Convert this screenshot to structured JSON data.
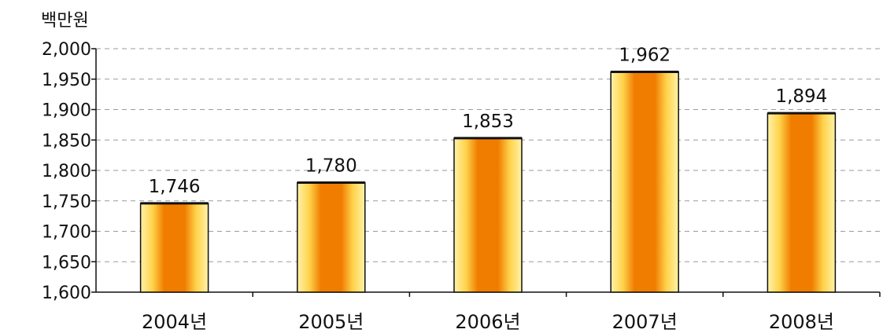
{
  "chart_data": {
    "type": "bar",
    "ylabel": "백만원",
    "categories": [
      "2004년",
      "2005년",
      "2006년",
      "2007년",
      "2008년"
    ],
    "values": [
      1746,
      1780,
      1853,
      1962,
      1894
    ],
    "value_labels": [
      "1,746",
      "1,780",
      "1,853",
      "1,962",
      "1,894"
    ],
    "ylim": [
      1600,
      2000
    ],
    "yticks": [
      1600,
      1650,
      1700,
      1750,
      1800,
      1850,
      1900,
      1950,
      2000
    ],
    "ytick_labels": [
      "1,600",
      "1,650",
      "1,700",
      "1,750",
      "1,800",
      "1,850",
      "1,900",
      "1,950",
      "2,000"
    ],
    "grid": true,
    "bar_colors": {
      "edge": "#fff2a8",
      "mid": "#ffd24a",
      "core": "#f07c00",
      "outline": "#111111"
    }
  }
}
